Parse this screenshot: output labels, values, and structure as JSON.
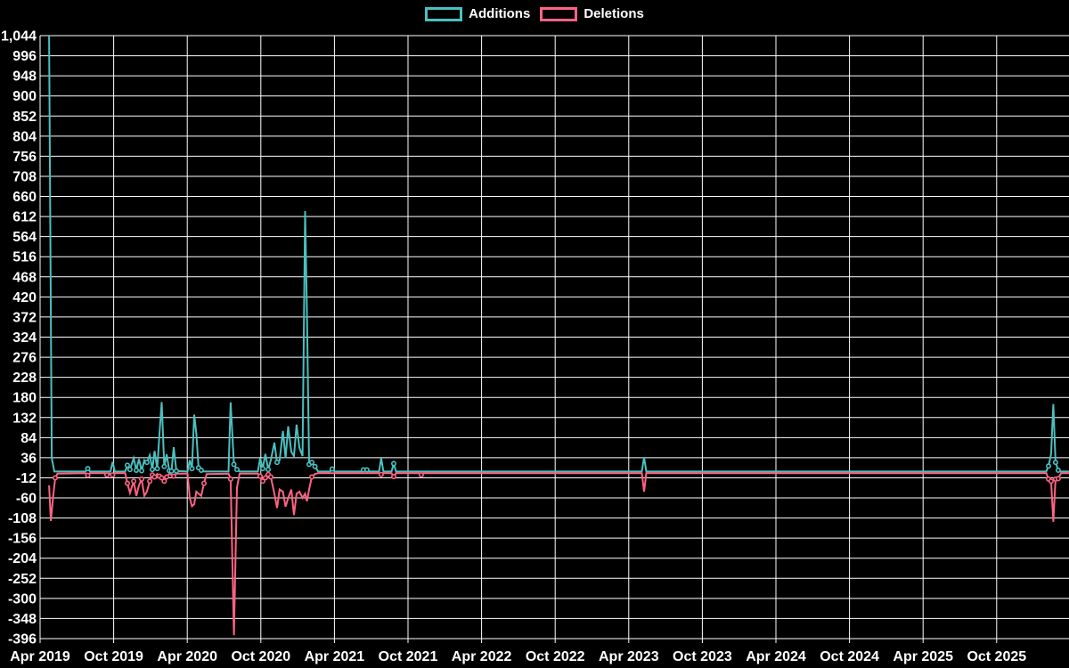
{
  "chart_data": {
    "type": "line",
    "title": "",
    "background_color": "#000000",
    "grid_color": "#ffffff",
    "text_color": "#ffffff",
    "legend": [
      {
        "label": "Additions",
        "color": "#4BC0C0"
      },
      {
        "label": "Deletions",
        "color": "#FF6384"
      }
    ],
    "legend_position": "top-center",
    "grid": true,
    "y_axis": {
      "max": 1044,
      "min": -396,
      "step": 48,
      "values": [
        1044,
        996,
        948,
        900,
        852,
        804,
        756,
        708,
        660,
        612,
        564,
        516,
        468,
        420,
        372,
        324,
        276,
        228,
        180,
        132,
        84,
        36,
        -12,
        -60,
        -108,
        -156,
        -204,
        -252,
        -300,
        -348,
        -396
      ],
      "labels": [
        "1,044",
        "996",
        "948",
        "900",
        "852",
        "804",
        "756",
        "708",
        "660",
        "612",
        "564",
        "516",
        "468",
        "420",
        "372",
        "324",
        "276",
        "228",
        "180",
        "132",
        "84",
        "36",
        "-12",
        "-60",
        "-108",
        "-156",
        "-204",
        "-252",
        "-300",
        "-348",
        "-396"
      ]
    },
    "x_axis": {
      "ticks": [
        {
          "label": "Apr 2019",
          "t": 2019.25
        },
        {
          "label": "Oct 2019",
          "t": 2019.75
        },
        {
          "label": "Apr 2020",
          "t": 2020.25
        },
        {
          "label": "Oct 2020",
          "t": 2020.75
        },
        {
          "label": "Apr 2021",
          "t": 2021.25
        },
        {
          "label": "Oct 2021",
          "t": 2021.75
        },
        {
          "label": "Apr 2022",
          "t": 2022.25
        },
        {
          "label": "Oct 2022",
          "t": 2022.75
        },
        {
          "label": "Apr 2023",
          "t": 2023.25
        },
        {
          "label": "Oct 2023",
          "t": 2023.75
        },
        {
          "label": "Apr 2024",
          "t": 2024.25
        },
        {
          "label": "Oct 2024",
          "t": 2024.75
        },
        {
          "label": "Apr 2025",
          "t": 2025.25
        },
        {
          "label": "Oct 2025",
          "t": 2025.75
        }
      ]
    },
    "series": [
      {
        "name": "Additions",
        "color": "#4BC0C0",
        "points": [
          [
            2019.311,
            1044
          ],
          [
            2019.329,
            35
          ],
          [
            2019.347,
            3
          ],
          [
            2019.559,
            3
          ],
          [
            2019.574,
            10
          ],
          [
            2019.589,
            3
          ],
          [
            2019.728,
            3
          ],
          [
            2019.743,
            26
          ],
          [
            2019.758,
            3
          ],
          [
            2019.828,
            3
          ],
          [
            2019.843,
            18
          ],
          [
            2019.861,
            8
          ],
          [
            2019.886,
            35
          ],
          [
            2019.904,
            6
          ],
          [
            2019.922,
            33
          ],
          [
            2019.94,
            5
          ],
          [
            2019.958,
            30
          ],
          [
            2019.976,
            25
          ],
          [
            2019.995,
            42
          ],
          [
            2020.013,
            8
          ],
          [
            2020.028,
            52
          ],
          [
            2020.046,
            10
          ],
          [
            2020.061,
            93
          ],
          [
            2020.076,
            169
          ],
          [
            2020.094,
            15
          ],
          [
            2020.11,
            44
          ],
          [
            2020.128,
            5
          ],
          [
            2020.143,
            4
          ],
          [
            2020.158,
            61
          ],
          [
            2020.176,
            4
          ],
          [
            2020.252,
            3
          ],
          [
            2020.267,
            30
          ],
          [
            2020.282,
            10
          ],
          [
            2020.297,
            139
          ],
          [
            2020.312,
            93
          ],
          [
            2020.327,
            12
          ],
          [
            2020.345,
            6
          ],
          [
            2020.364,
            3
          ],
          [
            2020.53,
            3
          ],
          [
            2020.545,
            168
          ],
          [
            2020.567,
            20
          ],
          [
            2020.588,
            8
          ],
          [
            2020.606,
            3
          ],
          [
            2020.73,
            3
          ],
          [
            2020.745,
            35
          ],
          [
            2020.763,
            10
          ],
          [
            2020.781,
            45
          ],
          [
            2020.8,
            8
          ],
          [
            2020.818,
            30
          ],
          [
            2020.842,
            72
          ],
          [
            2020.86,
            25
          ],
          [
            2020.878,
            30
          ],
          [
            2020.9,
            100
          ],
          [
            2020.918,
            35
          ],
          [
            2020.936,
            111
          ],
          [
            2020.957,
            50
          ],
          [
            2020.975,
            40
          ],
          [
            2020.993,
            115
          ],
          [
            2021.012,
            60
          ],
          [
            2021.033,
            40
          ],
          [
            2021.051,
            625
          ],
          [
            2021.063,
            390
          ],
          [
            2021.078,
            20
          ],
          [
            2021.096,
            25
          ],
          [
            2021.118,
            15
          ],
          [
            2021.139,
            3
          ],
          [
            2021.22,
            3
          ],
          [
            2021.235,
            9
          ],
          [
            2021.251,
            3
          ],
          [
            2021.432,
            3
          ],
          [
            2021.447,
            7
          ],
          [
            2021.471,
            7
          ],
          [
            2021.487,
            3
          ],
          [
            2021.553,
            3
          ],
          [
            2021.568,
            35
          ],
          [
            2021.583,
            3
          ],
          [
            2021.638,
            3
          ],
          [
            2021.653,
            22
          ],
          [
            2021.668,
            3
          ],
          [
            2023.339,
            3
          ],
          [
            2023.354,
            37
          ],
          [
            2023.369,
            3
          ],
          [
            2026.087,
            3
          ],
          [
            2026.102,
            16
          ],
          [
            2026.12,
            45
          ],
          [
            2026.135,
            164
          ],
          [
            2026.15,
            25
          ],
          [
            2026.168,
            6
          ],
          [
            2026.187,
            3
          ],
          [
            2026.241,
            3
          ]
        ]
      },
      {
        "name": "Deletions",
        "color": "#FF6384",
        "points": [
          [
            2019.311,
            -30
          ],
          [
            2019.323,
            -115
          ],
          [
            2019.338,
            -60
          ],
          [
            2019.353,
            -12
          ],
          [
            2019.368,
            -2
          ],
          [
            2019.559,
            -1
          ],
          [
            2019.574,
            -6
          ],
          [
            2019.589,
            -1
          ],
          [
            2019.689,
            -1
          ],
          [
            2019.704,
            -5
          ],
          [
            2019.719,
            -1
          ],
          [
            2019.743,
            -5
          ],
          [
            2019.758,
            -1
          ],
          [
            2019.828,
            -1
          ],
          [
            2019.843,
            -25
          ],
          [
            2019.861,
            -48
          ],
          [
            2019.886,
            -20
          ],
          [
            2019.904,
            -55
          ],
          [
            2019.922,
            -30
          ],
          [
            2019.94,
            -15
          ],
          [
            2019.958,
            -55
          ],
          [
            2019.976,
            -45
          ],
          [
            2019.995,
            -20
          ],
          [
            2020.013,
            -5
          ],
          [
            2020.028,
            -10
          ],
          [
            2020.046,
            -3
          ],
          [
            2020.061,
            -8
          ],
          [
            2020.076,
            -12
          ],
          [
            2020.094,
            -20
          ],
          [
            2020.11,
            -10
          ],
          [
            2020.128,
            -2
          ],
          [
            2020.158,
            -8
          ],
          [
            2020.176,
            -2
          ],
          [
            2020.252,
            -2
          ],
          [
            2020.267,
            -60
          ],
          [
            2020.282,
            -80
          ],
          [
            2020.297,
            -75
          ],
          [
            2020.312,
            -45
          ],
          [
            2020.327,
            -50
          ],
          [
            2020.345,
            -55
          ],
          [
            2020.364,
            -25
          ],
          [
            2020.382,
            -3
          ],
          [
            2020.53,
            -2
          ],
          [
            2020.545,
            -15
          ],
          [
            2020.567,
            -388
          ],
          [
            2020.588,
            -35
          ],
          [
            2020.606,
            -2
          ],
          [
            2020.73,
            -2
          ],
          [
            2020.745,
            -8
          ],
          [
            2020.763,
            -20
          ],
          [
            2020.781,
            -12
          ],
          [
            2020.8,
            -4
          ],
          [
            2020.818,
            -10
          ],
          [
            2020.842,
            -50
          ],
          [
            2020.86,
            -84
          ],
          [
            2020.878,
            -40
          ],
          [
            2020.9,
            -45
          ],
          [
            2020.918,
            -81
          ],
          [
            2020.936,
            -60
          ],
          [
            2020.957,
            -40
          ],
          [
            2020.975,
            -101
          ],
          [
            2020.993,
            -50
          ],
          [
            2021.012,
            -45
          ],
          [
            2021.033,
            -60
          ],
          [
            2021.051,
            -50
          ],
          [
            2021.063,
            -68
          ],
          [
            2021.078,
            -40
          ],
          [
            2021.096,
            -10
          ],
          [
            2021.118,
            -3
          ],
          [
            2021.139,
            -1
          ],
          [
            2021.553,
            -1
          ],
          [
            2021.568,
            -4
          ],
          [
            2021.583,
            -1
          ],
          [
            2021.638,
            -1
          ],
          [
            2021.653,
            -9
          ],
          [
            2021.668,
            -1
          ],
          [
            2021.825,
            -1
          ],
          [
            2021.84,
            -5
          ],
          [
            2021.855,
            -1
          ],
          [
            2023.339,
            -1
          ],
          [
            2023.354,
            -45
          ],
          [
            2023.369,
            -1
          ],
          [
            2026.087,
            -1
          ],
          [
            2026.102,
            -15
          ],
          [
            2026.12,
            -20
          ],
          [
            2026.135,
            -117
          ],
          [
            2026.15,
            -15
          ],
          [
            2026.168,
            -14
          ],
          [
            2026.187,
            -1
          ],
          [
            2026.241,
            -1
          ]
        ]
      }
    ]
  }
}
